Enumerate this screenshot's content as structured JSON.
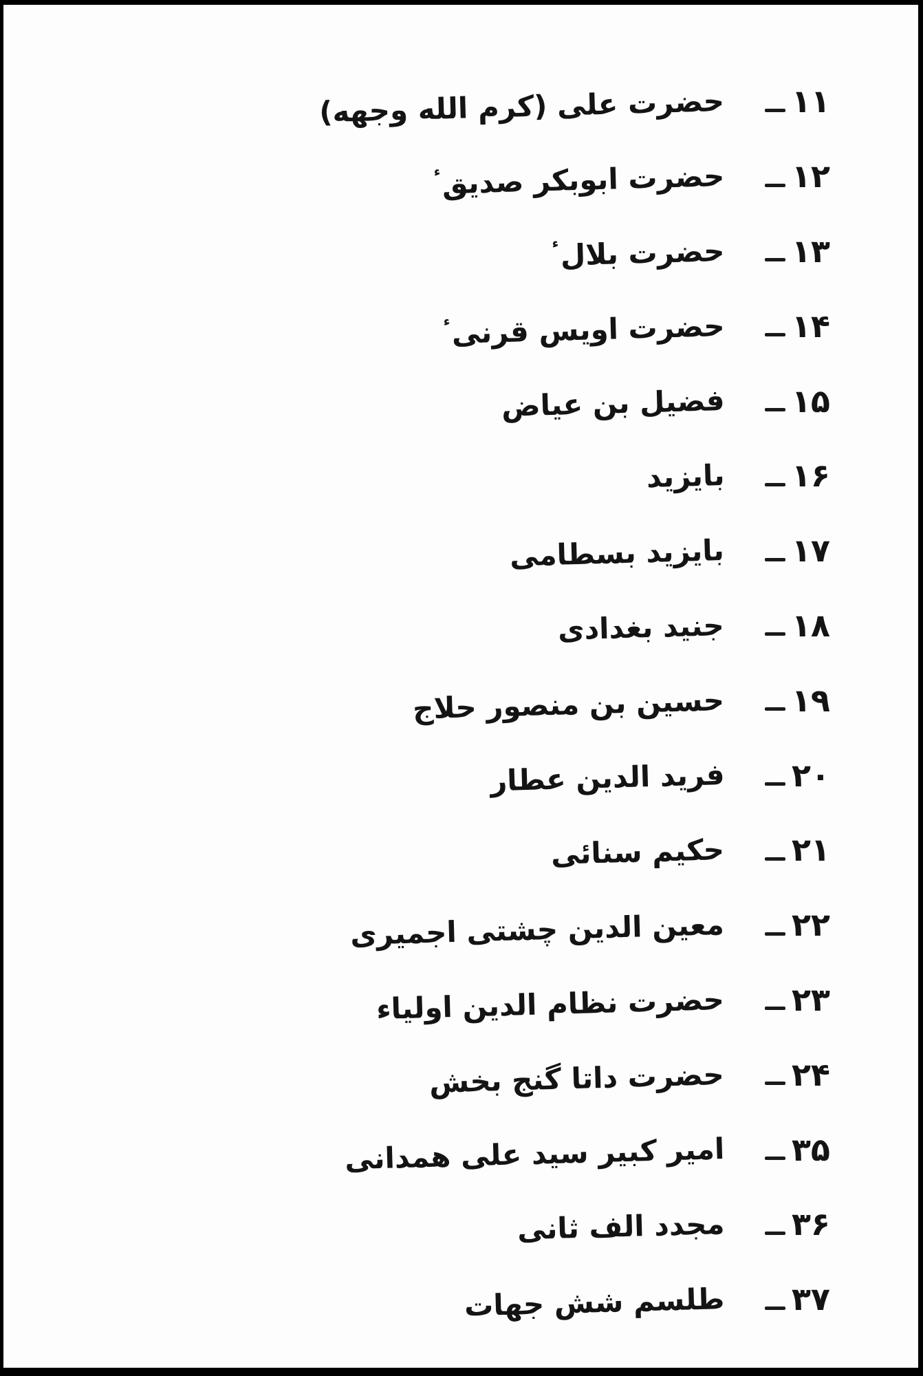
{
  "page": {
    "background": "#fdfdfd",
    "frame_color": "#000000",
    "language": "Urdu",
    "script": "Perso-Arabic (Nastaliq print, scanned)"
  },
  "list": {
    "direction": "rtl",
    "number_suffix_dash": "۔",
    "items": [
      {
        "number": "۱۱",
        "name": "حضرت علی (کرم الله وجهه)",
        "honorific": ""
      },
      {
        "number": "۱۲",
        "name": "حضرت ابوبکر صدیق",
        "honorific": "ء"
      },
      {
        "number": "۱۳",
        "name": "حضرت بلال",
        "honorific": "ء"
      },
      {
        "number": "۱۴",
        "name": "حضرت اویس قرنی",
        "honorific": "ء"
      },
      {
        "number": "۱۵",
        "name": "فضیل بن عیاض",
        "honorific": ""
      },
      {
        "number": "۱۶",
        "name": "بایزید",
        "honorific": ""
      },
      {
        "number": "۱۷",
        "name": "بایزید بسطامی",
        "honorific": ""
      },
      {
        "number": "۱۸",
        "name": "جنید بغدادی",
        "honorific": ""
      },
      {
        "number": "۱۹",
        "name": "حسین بن منصور حلاج",
        "honorific": ""
      },
      {
        "number": "۲۰",
        "name": "فرید الدین عطار",
        "honorific": ""
      },
      {
        "number": "۲۱",
        "name": "حکیم سنائی",
        "honorific": ""
      },
      {
        "number": "۲۲",
        "name": "معین الدین چشتی اجمیری",
        "honorific": ""
      },
      {
        "number": "۲۳",
        "name": "حضرت نظام الدین اولیاء",
        "honorific": ""
      },
      {
        "number": "۲۴",
        "name": "حضرت داتا گنج بخش",
        "honorific": ""
      },
      {
        "number": "۳۵",
        "name": "امیر کبیر سید علی همدانی",
        "honorific": ""
      },
      {
        "number": "۳۶",
        "name": "مجدد الف ثانی",
        "honorific": ""
      },
      {
        "number": "۳۷",
        "name": "طلسم شش جهات",
        "honorific": ""
      }
    ]
  }
}
